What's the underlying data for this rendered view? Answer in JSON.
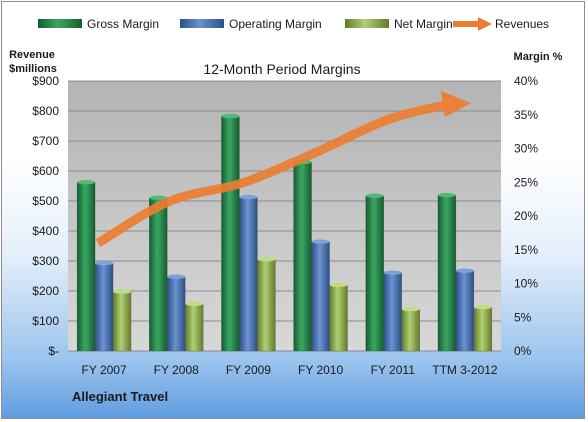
{
  "chart_data": {
    "type": "bar",
    "title": "12-Month Period Margins",
    "company": "Allegiant Travel",
    "categories": [
      "FY 2007",
      "FY 2008",
      "FY 2009",
      "FY 2010",
      "FY 2011",
      "TTM 3-2012"
    ],
    "y_left": {
      "label_lines": [
        "Revenue",
        "$millions"
      ],
      "ylim": [
        0,
        900
      ],
      "ticks": [
        0,
        100,
        200,
        300,
        400,
        500,
        600,
        700,
        800,
        900
      ],
      "tick_labels": [
        "$-",
        "$100",
        "$200",
        "$300",
        "$400",
        "$500",
        "$600",
        "$700",
        "$800",
        "$900"
      ]
    },
    "y_right": {
      "label": "Margin %",
      "ylim": [
        0,
        40
      ],
      "ticks": [
        0,
        5,
        10,
        15,
        20,
        25,
        30,
        35,
        40
      ],
      "tick_labels": [
        "0%",
        "5%",
        "10%",
        "15%",
        "20%",
        "25%",
        "30%",
        "35%",
        "40%"
      ]
    },
    "series": [
      {
        "name": "Gross Margin",
        "type": "bar",
        "axis": "right",
        "values": [
          25.0,
          22.7,
          34.8,
          28.0,
          23.0,
          23.1
        ],
        "color": "#2e9654"
      },
      {
        "name": "Operating Margin",
        "type": "bar",
        "axis": "right",
        "values": [
          13.0,
          11.0,
          22.8,
          16.2,
          11.6,
          11.9
        ],
        "color": "#4a74b7"
      },
      {
        "name": "Net Margin",
        "type": "bar",
        "axis": "right",
        "values": [
          8.8,
          7.0,
          13.6,
          9.8,
          6.2,
          6.5
        ],
        "color": "#97b854"
      },
      {
        "name": "Revenues",
        "type": "line",
        "axis": "left",
        "values": [
          360,
          500,
          560,
          660,
          770,
          820
        ],
        "color": "#ed7d31"
      }
    ],
    "legend_position": "top",
    "grid": true
  }
}
